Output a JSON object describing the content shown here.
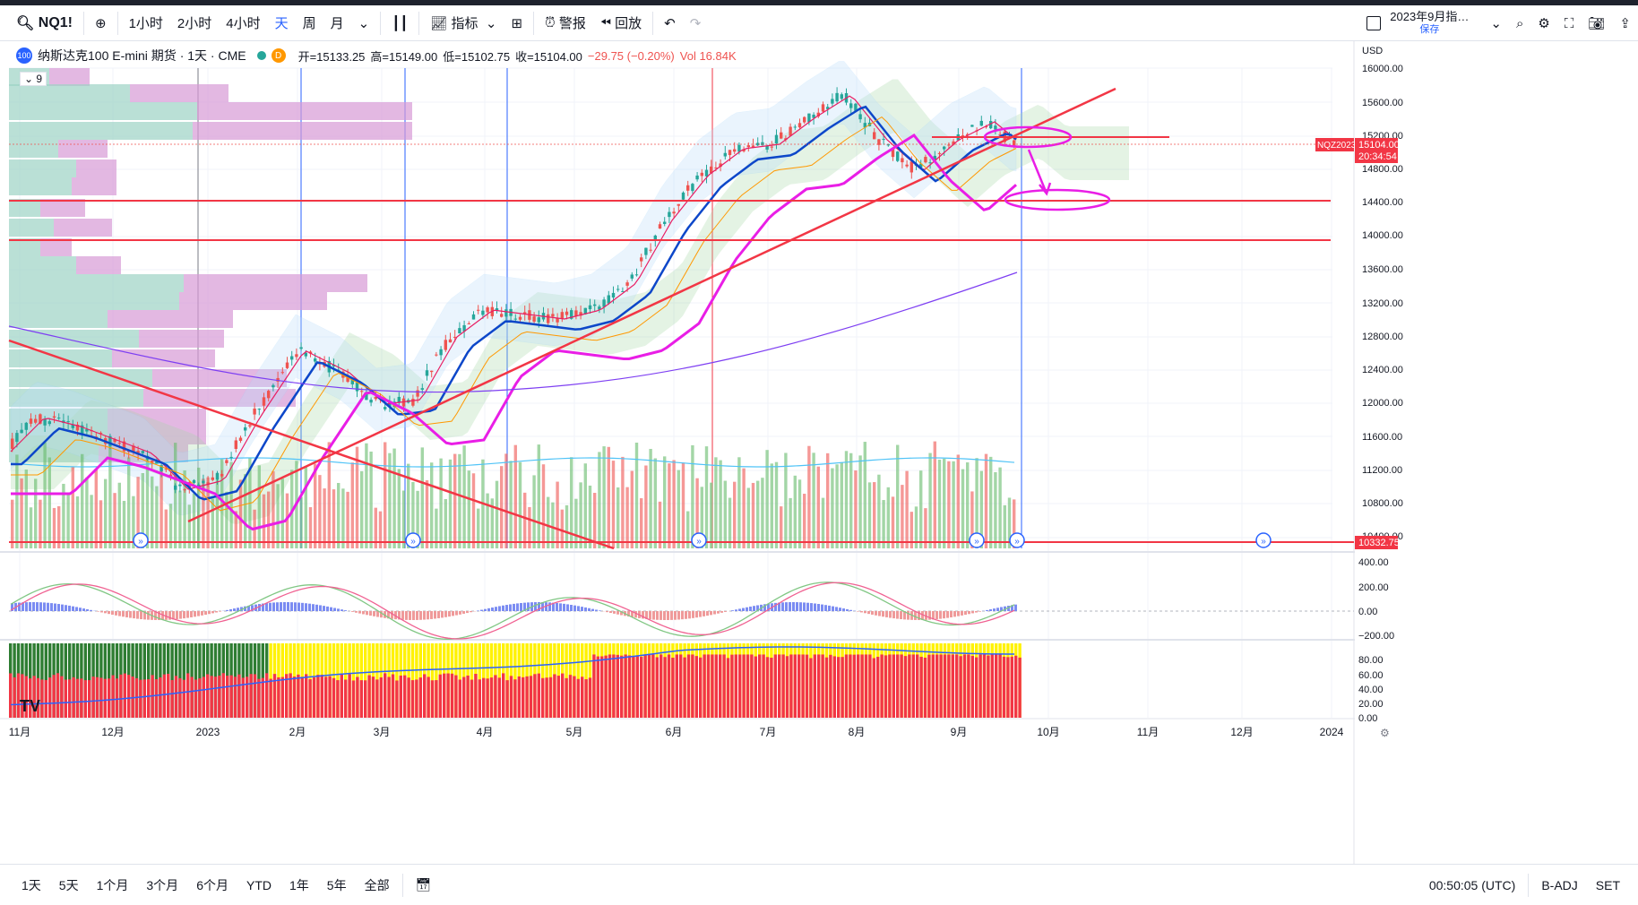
{
  "toolbar": {
    "symbol": "NQ1!",
    "intervals": [
      "1小时",
      "2小时",
      "4小时",
      "天",
      "周",
      "月"
    ],
    "active_interval": "天",
    "indicators_label": "指标",
    "alert_label": "警报",
    "replay_label": "回放",
    "layout_name": "2023年9月指…",
    "layout_status": "保存"
  },
  "legend": {
    "title": "纳斯达克100 E-mini 期货 · 1天 · CME",
    "badge": "100",
    "flag": "D",
    "open": "开=15133.25",
    "high": "高=15149.00",
    "low": "低=15102.75",
    "close": "收=15104.00",
    "change": "−29.75 (−0.20%)",
    "vol": "Vol 16.84K",
    "indicator_count": "9"
  },
  "price_axis": {
    "currency": "USD",
    "ticks": [
      "16000.00",
      "15600.00",
      "15200.00",
      "14800.00",
      "14400.00",
      "14000.00",
      "13600.00",
      "13200.00",
      "12800.00",
      "12400.00",
      "12000.00",
      "11600.00",
      "11200.00",
      "10800.00",
      "10400.00"
    ],
    "last_symbol": "NQZ2023",
    "last_price": "15104.00",
    "countdown": "20:34:54",
    "line_price": "10332.75",
    "osc1_ticks": [
      "400.00",
      "200.00",
      "0.00",
      "−200.00"
    ],
    "osc2_ticks": [
      "80.00",
      "60.00",
      "40.00",
      "20.00",
      "0.00"
    ]
  },
  "time_axis": [
    "11月",
    "12月",
    "2023",
    "2月",
    "3月",
    "4月",
    "5月",
    "6月",
    "7月",
    "8月",
    "9月",
    "10月",
    "11月",
    "12月",
    "2024"
  ],
  "bottom": {
    "ranges": [
      "1天",
      "5天",
      "1个月",
      "3个月",
      "6个月",
      "YTD",
      "1年",
      "5年",
      "全部"
    ],
    "clock": "00:50:05 (UTC)",
    "badj": "B-ADJ",
    "set": "SET"
  },
  "colors": {
    "up": "#26a69a",
    "down": "#ef5350",
    "red_line": "#f23645",
    "magenta": "#e91ee6",
    "blue_ma": "#0d47c9",
    "purple_ma": "#7e3ff2"
  }
}
